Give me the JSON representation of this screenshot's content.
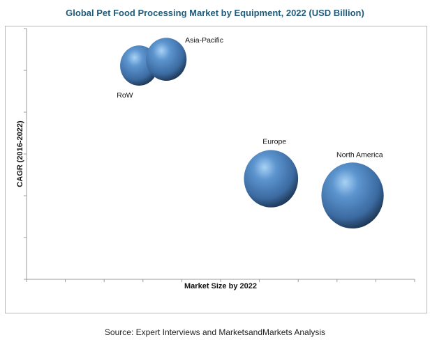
{
  "chart_data": {
    "type": "bubble",
    "title": "Global Pet Food Processing Market by Equipment, 2022 (USD Billion)",
    "xlabel": "Market Size by 2022",
    "ylabel": "CAGR (2016-2022)",
    "xlim": [
      0,
      10
    ],
    "ylim": [
      0,
      6
    ],
    "x_tick_count": 10,
    "y_tick_count": 6,
    "tick_labels_shown": false,
    "grid": false,
    "legend": "none",
    "bubble_color": "#4a7fb8",
    "series": [
      {
        "name": "RoW",
        "x": 2.9,
        "y": 5.1,
        "size": 28
      },
      {
        "name": "Asia-Pacific",
        "x": 3.6,
        "y": 5.25,
        "size": 30
      },
      {
        "name": "Europe",
        "x": 6.3,
        "y": 2.4,
        "size": 40
      },
      {
        "name": "North America",
        "x": 8.4,
        "y": 2.0,
        "size": 46
      }
    ],
    "source": "Source: Expert Interviews and MarketsandMarkets Analysis"
  }
}
